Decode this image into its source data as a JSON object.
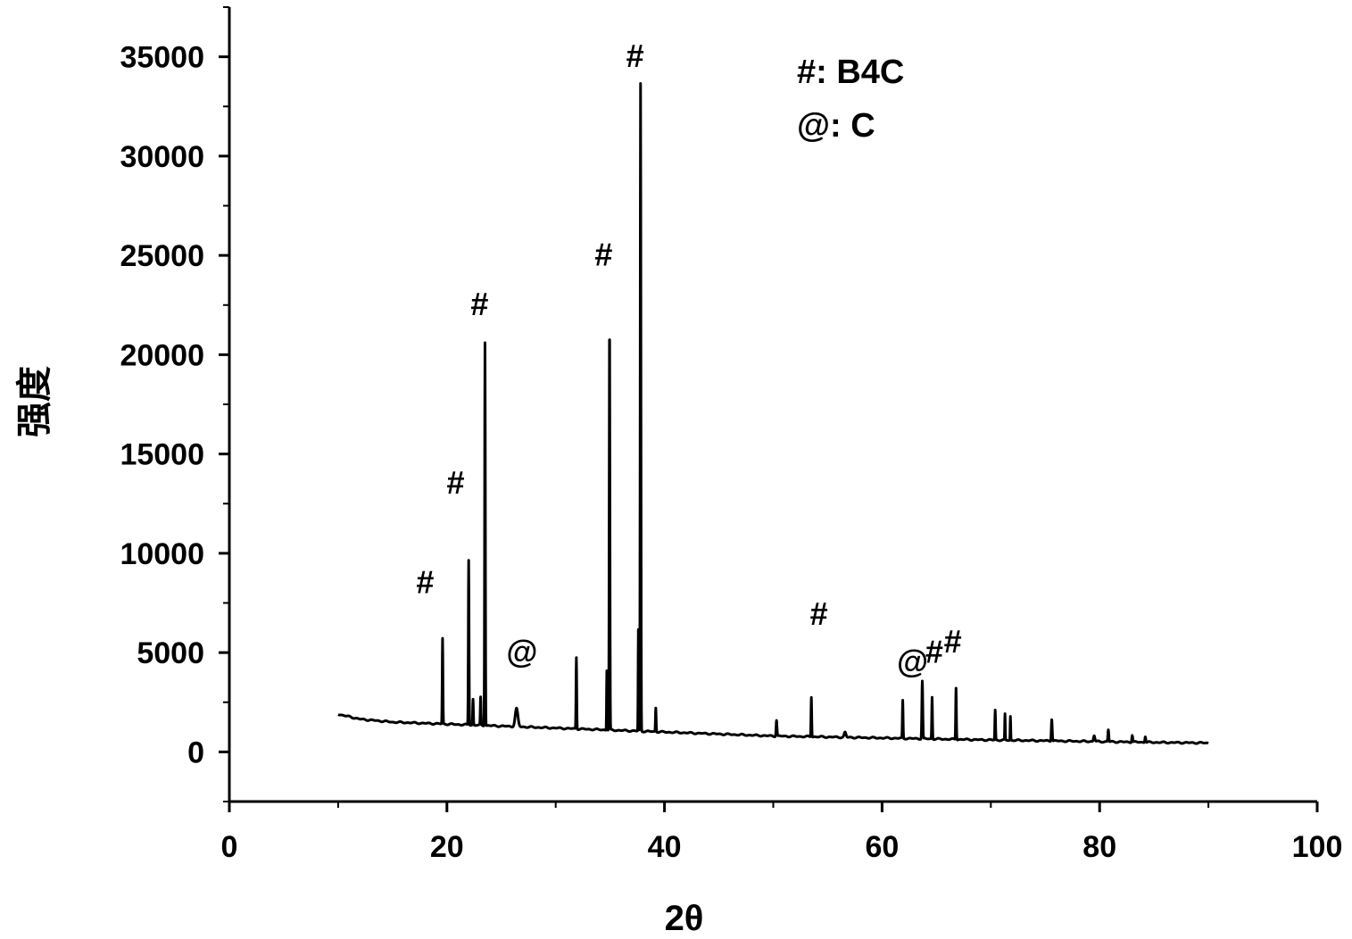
{
  "chart_data": {
    "type": "line",
    "xlabel": "2θ",
    "ylabel": "强度",
    "xlim": [
      0,
      100
    ],
    "ylim": [
      -2500,
      37500
    ],
    "x_ticks": [
      0,
      20,
      40,
      60,
      80,
      100
    ],
    "y_ticks": [
      0,
      5000,
      10000,
      15000,
      20000,
      25000,
      30000,
      35000
    ],
    "grid": false,
    "legend_position": "top-center",
    "legend": [
      {
        "symbol": "#",
        "text": "#: B4C"
      },
      {
        "symbol": "@",
        "text": "@: C"
      }
    ],
    "background": {
      "x": [
        10,
        12,
        15,
        20,
        25,
        30,
        35,
        40,
        45,
        50,
        55,
        60,
        65,
        70,
        75,
        80,
        85,
        90
      ],
      "y": [
        1900,
        1650,
        1500,
        1400,
        1300,
        1200,
        1100,
        1000,
        900,
        800,
        750,
        700,
        650,
        600,
        560,
        520,
        480,
        450
      ]
    },
    "peaks": [
      {
        "x": 19.6,
        "height": 4300,
        "width": 0.15
      },
      {
        "x": 22.0,
        "height": 8300,
        "width": 0.15
      },
      {
        "x": 22.4,
        "height": 1300,
        "width": 0.15
      },
      {
        "x": 23.1,
        "height": 1400,
        "width": 0.15
      },
      {
        "x": 23.5,
        "height": 19300,
        "width": 0.15
      },
      {
        "x": 26.4,
        "height": 900,
        "width": 0.6
      },
      {
        "x": 31.9,
        "height": 3600,
        "width": 0.15
      },
      {
        "x": 34.7,
        "height": 3000,
        "width": 0.12
      },
      {
        "x": 34.95,
        "height": 20700,
        "width": 0.15
      },
      {
        "x": 37.6,
        "height": 5100,
        "width": 0.12
      },
      {
        "x": 37.8,
        "height": 32600,
        "width": 0.15
      },
      {
        "x": 39.2,
        "height": 1200,
        "width": 0.15
      },
      {
        "x": 50.3,
        "height": 800,
        "width": 0.2
      },
      {
        "x": 53.5,
        "height": 2000,
        "width": 0.15
      },
      {
        "x": 56.6,
        "height": 250,
        "width": 0.4
      },
      {
        "x": 61.9,
        "height": 1900,
        "width": 0.15
      },
      {
        "x": 63.7,
        "height": 2900,
        "width": 0.2
      },
      {
        "x": 64.6,
        "height": 2100,
        "width": 0.15
      },
      {
        "x": 66.8,
        "height": 2600,
        "width": 0.15
      },
      {
        "x": 70.4,
        "height": 1500,
        "width": 0.15
      },
      {
        "x": 71.3,
        "height": 1300,
        "width": 0.12
      },
      {
        "x": 71.8,
        "height": 1200,
        "width": 0.12
      },
      {
        "x": 75.6,
        "height": 1100,
        "width": 0.2
      },
      {
        "x": 79.5,
        "height": 300,
        "width": 0.3
      },
      {
        "x": 80.8,
        "height": 600,
        "width": 0.2
      },
      {
        "x": 83.0,
        "height": 350,
        "width": 0.2
      },
      {
        "x": 84.2,
        "height": 300,
        "width": 0.2
      }
    ],
    "annotations": [
      {
        "text": "#",
        "x": 18.0,
        "y": 8000
      },
      {
        "text": "#",
        "x": 20.8,
        "y": 13000
      },
      {
        "text": "#",
        "x": 23.0,
        "y": 22000
      },
      {
        "text": "#",
        "x": 34.4,
        "y": 24500
      },
      {
        "text": "#",
        "x": 37.3,
        "y": 34500
      },
      {
        "text": "@",
        "x": 26.9,
        "y": 4500
      },
      {
        "text": "#",
        "x": 54.2,
        "y": 6400
      },
      {
        "text": "@",
        "x": 62.8,
        "y": 4000
      },
      {
        "text": "#",
        "x": 64.8,
        "y": 4500
      },
      {
        "text": "#",
        "x": 66.5,
        "y": 5000
      }
    ]
  }
}
